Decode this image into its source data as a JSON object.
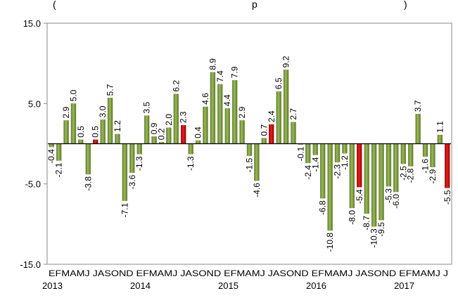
{
  "header_fragment": {
    "left": "(",
    "mid": "p",
    "right": ")"
  },
  "chart_data": {
    "type": "bar",
    "ylim": [
      -15,
      15
    ],
    "y_ticks": [
      "15.0",
      "5.0",
      "-5.0",
      "-15.0"
    ],
    "y_tick_values": [
      15,
      5,
      -5,
      -15
    ],
    "grid": false,
    "month_labels": "EFMAMJ JASOND EFMAMJ JASOND EFMAMJ JASOND EFMAMJ JASOND EFMAMJ J",
    "year_labels": [
      "2013",
      "2014",
      "2015",
      "2016",
      "2017"
    ],
    "colors": {
      "normal": "#76923c",
      "highlight": "#c00000",
      "axis": "#000000"
    },
    "categories": [
      "E",
      "F",
      "M",
      "A",
      "M",
      "J",
      "J",
      "A",
      "S",
      "O",
      "N",
      "D",
      "E",
      "F",
      "M",
      "A",
      "M",
      "J",
      "J",
      "A",
      "S",
      "O",
      "N",
      "D",
      "E",
      "F",
      "M",
      "A",
      "M",
      "J",
      "J",
      "A",
      "S",
      "O",
      "N",
      "D",
      "E",
      "F",
      "M",
      "A",
      "M",
      "J",
      "J",
      "A",
      "S",
      "O",
      "N",
      "D",
      "E",
      "F",
      "M",
      "A",
      "M",
      "J",
      "J"
    ],
    "values": [
      -0.4,
      -2.1,
      2.9,
      5.0,
      0.5,
      -3.8,
      0.5,
      3.0,
      5.7,
      1.2,
      -7.1,
      -3.6,
      -1.3,
      3.5,
      0.9,
      0.2,
      2.0,
      6.2,
      2.3,
      -1.3,
      0.4,
      4.6,
      8.9,
      7.4,
      4.4,
      7.9,
      2.9,
      -1.5,
      -4.6,
      0.7,
      2.4,
      6.5,
      9.2,
      2.7,
      -0.1,
      -2.4,
      -1.4,
      -6.8,
      -10.8,
      -2.3,
      -1.2,
      -8.0,
      -5.4,
      -8.7,
      -10.3,
      -9.5,
      -5.3,
      -6.0,
      -2.5,
      -2.8,
      3.7,
      -1.6,
      -2.9,
      1.1,
      -5.5
    ],
    "labels": [
      "-0.4",
      "-2.1",
      "2.9",
      "5.0",
      "0.5",
      "-3.8",
      "0.5",
      "3.0",
      "5.7",
      "1.2",
      "-7.1",
      "-3.6",
      "-1.3",
      "3.5",
      "0.9",
      "0.2",
      "2.0",
      "6.2",
      "2.3",
      "-1.3",
      "0.4",
      "4.6",
      "8.9",
      "7.4",
      "4.4",
      "7.9",
      "2.9",
      "-1.5",
      "-4.6",
      "0.7",
      "2.4",
      "6.5",
      "9.2",
      "2.7",
      "-0.1",
      "-2.4",
      "-1.4",
      "-6.8",
      "-10.8",
      "-2.3",
      "-1.2",
      "-8.0",
      "-5.4",
      "-8.7",
      "-10.3",
      "-9.5",
      "-5.3",
      "-6.0",
      "-2.5",
      "-2.8",
      "3.7",
      "-1.6",
      "-2.9",
      "1.1",
      "-5.5"
    ],
    "highlight": [
      6,
      18,
      30,
      42,
      54
    ]
  }
}
